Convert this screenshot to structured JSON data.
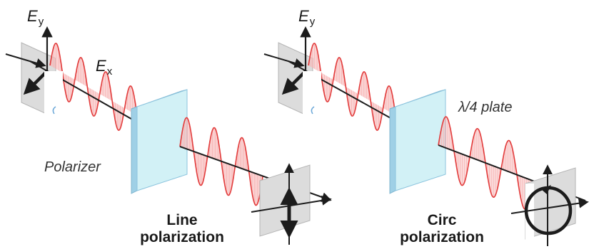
{
  "left_panel": {
    "ey_label": {
      "main": "E",
      "sub": "y"
    },
    "ex_label": {
      "main": "E",
      "sub": "x"
    },
    "component_label": "Polarizer",
    "result_label": [
      "Line",
      "polarization"
    ]
  },
  "right_panel": {
    "ey_label": {
      "main": "E",
      "sub": "y"
    },
    "component_label": "λ/4 plate",
    "result_label": [
      "Circ",
      "polarization"
    ]
  },
  "colors": {
    "wave": "#e23b3b",
    "wave_fill": "#f7b8b8",
    "beam": "#2b2b2b",
    "plate_face": "#d2f1f6",
    "plate_edge": "#8cc4de",
    "screen": "#dcdcdc",
    "arrow": "#1c1c1c"
  }
}
